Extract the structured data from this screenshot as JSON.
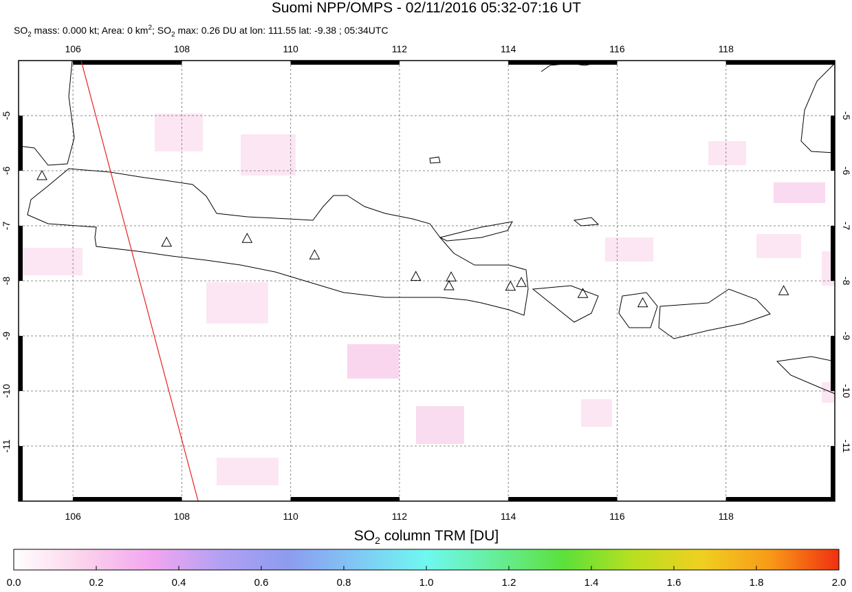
{
  "map": {
    "title": "Suomi NPP/OMPS - 02/11/2016 05:32-07:16 UT",
    "subtitle_parts": [
      "SO",
      "2",
      " mass: 0.000 kt; Area: 0 km",
      "2",
      "; SO",
      "2",
      " max: 0.26 DU at lon: 111.55 lat: -9.38 ; 05:34UTC"
    ],
    "lon_range": [
      105,
      120
    ],
    "lat_range": [
      -4,
      -12
    ],
    "lon_ticks": [
      106,
      108,
      110,
      112,
      114,
      116,
      118
    ],
    "lat_ticks": [
      -5,
      -6,
      -7,
      -8,
      -9,
      -10,
      -11
    ],
    "grid": true,
    "orbit_track": {
      "color": "#e8201a",
      "lon": [
        106.15,
        108.3
      ],
      "lat": [
        -4,
        -12
      ]
    },
    "volcanoes": {
      "lon": [
        105.43,
        107.72,
        109.2,
        110.44,
        112.3,
        112.95,
        112.91,
        114.04,
        114.24,
        115.37,
        116.47,
        119.06
      ],
      "lat": [
        -6.1,
        -7.31,
        -7.24,
        -7.54,
        -7.93,
        -7.94,
        -8.1,
        -8.11,
        -8.04,
        -8.24,
        -8.41,
        -8.19
      ]
    },
    "colorbar": {
      "label_parts": [
        "SO",
        "2",
        " column TRM [DU]"
      ],
      "range": [
        0,
        2
      ],
      "colors": [
        "#ffffff",
        "#fbd3ec",
        "#f2a6f0",
        "#b3a0f2",
        "#8c9cf0",
        "#80c8f4",
        "#6ff8f0",
        "#66ee9a",
        "#5ce03a",
        "#b8e020",
        "#f0d020",
        "#f89a18",
        "#f03010"
      ],
      "ticks": [
        {
          "value": 0,
          "label": "0.0"
        },
        {
          "value": 0.2,
          "label": "0.2"
        },
        {
          "value": 0.4,
          "label": "0.4"
        },
        {
          "value": 0.6,
          "label": "0.6"
        },
        {
          "value": 0.8,
          "label": "0.8"
        },
        {
          "value": 1.0,
          "label": "1.0"
        },
        {
          "value": 1.2,
          "label": "1.2"
        },
        {
          "value": 1.4,
          "label": "1.4"
        },
        {
          "value": 1.6,
          "label": "1.6"
        },
        {
          "value": 1.8,
          "label": "1.8"
        },
        {
          "value": 2.0,
          "label": "2.0"
        }
      ]
    }
  }
}
